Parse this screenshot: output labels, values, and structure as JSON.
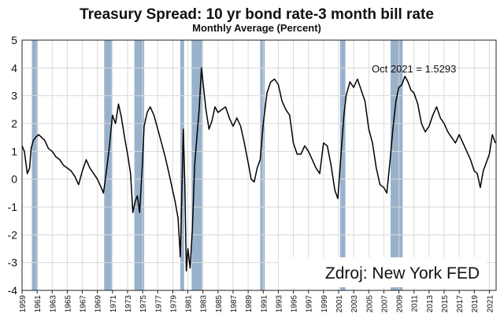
{
  "chart_data": {
    "type": "line",
    "title": "Treasury Spread: 10 yr bond rate-3 month bill rate",
    "subtitle": "Monthly Average (Percent)",
    "xlabel": "",
    "ylabel": "",
    "xlim": [
      1959.0,
      2021.9
    ],
    "ylim": [
      -4,
      5
    ],
    "yticks": [
      5,
      4,
      3,
      2,
      1,
      0,
      -1,
      -2,
      -3,
      -4
    ],
    "xticks": [
      "1959",
      "1961",
      "1963",
      "1965",
      "1967",
      "1969",
      "1971",
      "1973",
      "1975",
      "1977",
      "1979",
      "1981",
      "1983",
      "1985",
      "1987",
      "1989",
      "1991",
      "1993",
      "1995",
      "1997",
      "1999",
      "2001",
      "2003",
      "2005",
      "2007",
      "2009",
      "2011",
      "2013",
      "2015",
      "2017",
      "2019",
      "2021"
    ],
    "grid": true,
    "annotation": "Oct 2021 = 1.5293",
    "source_label": "Zdroj: New York FED",
    "recessions": [
      [
        1960.3,
        1961.1
      ],
      [
        1969.9,
        1970.9
      ],
      [
        1973.9,
        1975.2
      ],
      [
        1980.0,
        1980.5
      ],
      [
        1981.5,
        1982.9
      ],
      [
        1990.6,
        1991.2
      ],
      [
        2001.2,
        2001.9
      ],
      [
        2007.9,
        2009.5
      ]
    ],
    "series": [
      {
        "name": "Treasury Spread",
        "color": "#000000",
        "x": [
          1959.0,
          1959.3,
          1959.7,
          1960.0,
          1960.2,
          1960.5,
          1960.8,
          1961.2,
          1961.6,
          1962.0,
          1962.5,
          1963.0,
          1963.5,
          1964.0,
          1964.5,
          1965.0,
          1965.5,
          1966.0,
          1966.5,
          1967.0,
          1967.5,
          1968.0,
          1968.5,
          1969.0,
          1969.5,
          1969.8,
          1970.3,
          1970.6,
          1971.0,
          1971.4,
          1971.8,
          1972.2,
          1972.6,
          1973.0,
          1973.4,
          1973.7,
          1974.0,
          1974.3,
          1974.6,
          1974.9,
          1975.2,
          1975.6,
          1976.0,
          1976.5,
          1977.0,
          1977.5,
          1978.0,
          1978.5,
          1978.9,
          1979.3,
          1979.7,
          1980.0,
          1980.2,
          1980.4,
          1980.6,
          1980.8,
          1981.0,
          1981.3,
          1981.6,
          1981.9,
          1982.2,
          1982.5,
          1982.8,
          1983.0,
          1983.4,
          1983.8,
          1984.2,
          1984.6,
          1985.0,
          1985.5,
          1986.0,
          1986.5,
          1987.0,
          1987.5,
          1988.0,
          1988.5,
          1989.0,
          1989.4,
          1989.8,
          1990.2,
          1990.6,
          1991.0,
          1991.5,
          1992.0,
          1992.5,
          1993.0,
          1993.5,
          1994.0,
          1994.5,
          1995.0,
          1995.5,
          1996.0,
          1996.5,
          1997.0,
          1997.5,
          1998.0,
          1998.5,
          1999.0,
          1999.5,
          2000.0,
          2000.5,
          2000.9,
          2001.3,
          2001.7,
          2002.0,
          2002.5,
          2003.0,
          2003.5,
          2004.0,
          2004.5,
          2005.0,
          2005.5,
          2006.0,
          2006.5,
          2007.0,
          2007.4,
          2007.8,
          2008.2,
          2008.6,
          2009.0,
          2009.4,
          2009.8,
          2010.2,
          2010.6,
          2011.0,
          2011.5,
          2012.0,
          2012.5,
          2013.0,
          2013.5,
          2014.0,
          2014.5,
          2015.0,
          2015.5,
          2016.0,
          2016.5,
          2017.0,
          2017.5,
          2018.0,
          2018.5,
          2019.0,
          2019.4,
          2019.8,
          2020.2,
          2020.6,
          2021.0,
          2021.4,
          2021.8
        ],
        "y": [
          1.2,
          1.0,
          0.2,
          0.4,
          1.1,
          1.4,
          1.5,
          1.6,
          1.5,
          1.4,
          1.1,
          1.0,
          0.8,
          0.7,
          0.5,
          0.4,
          0.3,
          0.1,
          -0.2,
          0.3,
          0.7,
          0.4,
          0.2,
          0.0,
          -0.3,
          -0.5,
          0.5,
          1.2,
          2.3,
          2.0,
          2.7,
          2.2,
          1.5,
          0.9,
          0.2,
          -1.2,
          -0.8,
          -0.6,
          -1.2,
          0.2,
          1.9,
          2.4,
          2.6,
          2.3,
          1.8,
          1.3,
          0.8,
          0.2,
          -0.3,
          -0.8,
          -1.4,
          -2.8,
          -0.5,
          1.8,
          -0.2,
          -3.3,
          -2.5,
          -3.2,
          -1.8,
          0.5,
          1.5,
          2.5,
          4.0,
          3.5,
          2.5,
          1.8,
          2.1,
          2.6,
          2.4,
          2.5,
          2.6,
          2.2,
          1.9,
          2.2,
          1.9,
          1.3,
          0.6,
          0.0,
          -0.1,
          0.4,
          0.7,
          2.0,
          3.1,
          3.5,
          3.6,
          3.4,
          2.8,
          2.5,
          2.3,
          1.3,
          0.9,
          0.9,
          1.2,
          1.0,
          0.7,
          0.4,
          0.2,
          1.3,
          1.2,
          0.5,
          -0.4,
          -0.7,
          0.8,
          2.3,
          3.0,
          3.5,
          3.3,
          3.6,
          3.2,
          2.8,
          1.8,
          1.3,
          0.4,
          -0.2,
          -0.3,
          -0.5,
          0.6,
          1.8,
          2.8,
          3.3,
          3.4,
          3.7,
          3.5,
          3.2,
          3.1,
          2.7,
          2.0,
          1.7,
          1.9,
          2.3,
          2.6,
          2.2,
          2.0,
          1.7,
          1.5,
          1.3,
          1.6,
          1.3,
          1.0,
          0.7,
          0.3,
          0.2,
          -0.3,
          0.3,
          0.6,
          0.9,
          1.6,
          1.3
        ]
      }
    ]
  }
}
